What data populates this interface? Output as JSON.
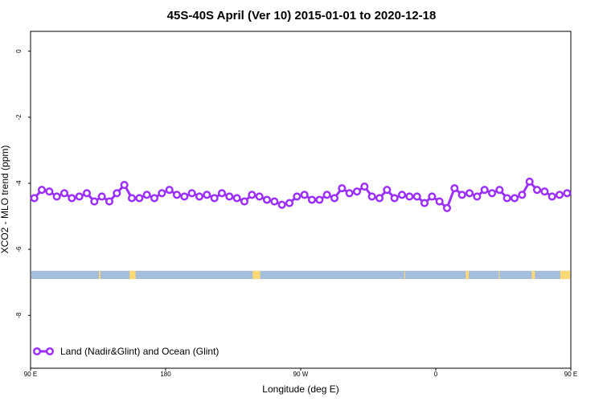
{
  "chart_data": {
    "type": "line",
    "title": "45S-40S April (Ver 10)   2015-01-01 to 2020-12-18",
    "xlabel": "Longitude (deg E)",
    "ylabel": "XCO2 - MLO trend (ppm)",
    "xlim": [
      90,
      450
    ],
    "ylim": [
      -9.6,
      0.6
    ],
    "x_ticks": [
      {
        "value": 90,
        "label": "90 E"
      },
      {
        "value": 180,
        "label": "180"
      },
      {
        "value": 270,
        "label": "90 W"
      },
      {
        "value": 360,
        "label": "0"
      },
      {
        "value": 450,
        "label": "90 E"
      },
      {
        "value": 540,
        "label": "180"
      }
    ],
    "y_ticks": [
      {
        "value": 0,
        "label": "0"
      },
      {
        "value": -2,
        "label": "-2"
      },
      {
        "value": -4,
        "label": "-4"
      },
      {
        "value": -6,
        "label": "-6"
      },
      {
        "value": -8,
        "label": "-8"
      }
    ],
    "legend_position": "bottom-left",
    "series": [
      {
        "name": "Land (Nadir&Glint) and Ocean (Glint)",
        "color": "#9b30ff",
        "x": [
          92.5,
          97.5,
          102.5,
          107.5,
          112.5,
          117.5,
          122.5,
          127.5,
          132.5,
          137.5,
          142.5,
          147.5,
          152.5,
          157.5,
          162.5,
          167.5,
          172.5,
          177.5,
          182.5,
          187.5,
          192.5,
          197.5,
          202.5,
          207.5,
          212.5,
          217.5,
          222.5,
          227.5,
          232.5,
          237.5,
          242.5,
          247.5,
          252.5,
          257.5,
          262.5,
          267.5,
          272.5,
          277.5,
          282.5,
          287.5,
          292.5,
          297.5,
          302.5,
          307.5,
          312.5,
          317.5,
          322.5,
          327.5,
          332.5,
          337.5,
          342.5,
          347.5,
          352.5,
          357.5,
          362.5,
          367.5,
          372.5,
          377.5,
          382.5,
          387.5,
          392.5,
          397.5,
          402.5,
          407.5,
          412.5,
          417.5,
          422.5,
          427.5,
          432.5,
          437.5,
          442.5,
          447.5
        ],
        "values": [
          -4.45,
          -4.2,
          -4.25,
          -4.4,
          -4.3,
          -4.45,
          -4.4,
          -4.3,
          -4.55,
          -4.4,
          -4.55,
          -4.3,
          -4.05,
          -4.45,
          -4.45,
          -4.35,
          -4.45,
          -4.3,
          -4.2,
          -4.35,
          -4.4,
          -4.3,
          -4.4,
          -4.35,
          -4.45,
          -4.3,
          -4.4,
          -4.45,
          -4.55,
          -4.35,
          -4.4,
          -4.5,
          -4.55,
          -4.65,
          -4.6,
          -4.4,
          -4.35,
          -4.5,
          -4.5,
          -4.35,
          -4.45,
          -4.15,
          -4.3,
          -4.25,
          -4.1,
          -4.4,
          -4.45,
          -4.2,
          -4.45,
          -4.35,
          -4.4,
          -4.4,
          -4.6,
          -4.4,
          -4.55,
          -4.75,
          -4.15,
          -4.35,
          -4.3,
          -4.4,
          -4.2,
          -4.3,
          -4.2,
          -4.45,
          -4.45,
          -4.35,
          -3.95,
          -4.2,
          -4.25,
          -4.4,
          -4.35,
          -4.3
        ]
      }
    ],
    "land_band": {
      "y_range": [
        -6.9,
        -6.65
      ],
      "ocean_color": "#a6bddb",
      "land_color": "#fed976",
      "land_segments": [
        [
          135.5,
          136.5
        ],
        [
          156,
          160
        ],
        [
          238,
          243
        ],
        [
          339,
          339.5
        ],
        [
          380,
          382
        ],
        [
          402,
          402.5
        ],
        [
          424,
          426
        ],
        [
          443,
          450
        ]
      ]
    }
  }
}
